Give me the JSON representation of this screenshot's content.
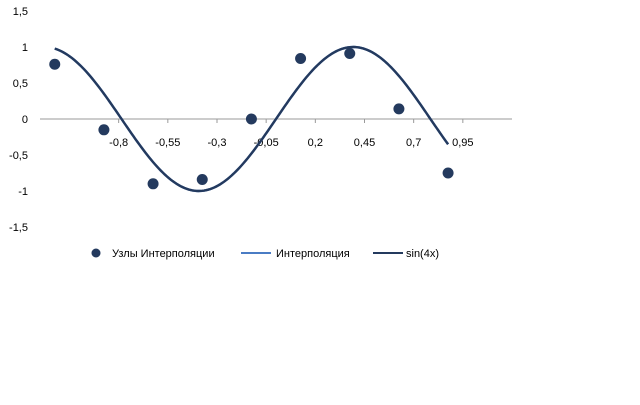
{
  "chart_data": {
    "type": "line",
    "title": "",
    "xlabel": "",
    "ylabel": "",
    "xlim": [
      -1.2,
      1.2
    ],
    "ylim": [
      -1.5,
      1.5
    ],
    "y_ticks": [
      1.5,
      1,
      0.5,
      0,
      -0.5,
      -1,
      -1.5
    ],
    "y_tick_labels": [
      "1,5",
      "1",
      "0,5",
      "0",
      "-0,5",
      "-1",
      "-1,5"
    ],
    "x_ticks": [
      -0.8,
      -0.55,
      -0.3,
      -0.05,
      0.2,
      0.45,
      0.7,
      0.95
    ],
    "x_tick_labels": [
      "-0,8",
      "-0,55",
      "-0,3",
      "-0,05",
      "0,2",
      "0,45",
      "0,7",
      "0,95"
    ],
    "grid": false,
    "legend_position": "bottom",
    "series": [
      {
        "name": "Узлы Интерполяции",
        "kind": "scatter",
        "color": "#243a5e",
        "x": [
          -1.125,
          -0.875,
          -0.625,
          -0.375,
          -0.125,
          0.125,
          0.375,
          0.625,
          0.875
        ],
        "y": [
          0.76,
          -0.15,
          -0.9,
          -0.84,
          0.0,
          0.84,
          0.91,
          0.14,
          -0.75
        ]
      },
      {
        "name": "Интерполяция",
        "kind": "line",
        "color": "#4a7cc4",
        "formula": "sin(4x)"
      },
      {
        "name": "sin(4x)",
        "kind": "line",
        "color": "#243a5e",
        "formula": "sin(4x)"
      }
    ]
  }
}
